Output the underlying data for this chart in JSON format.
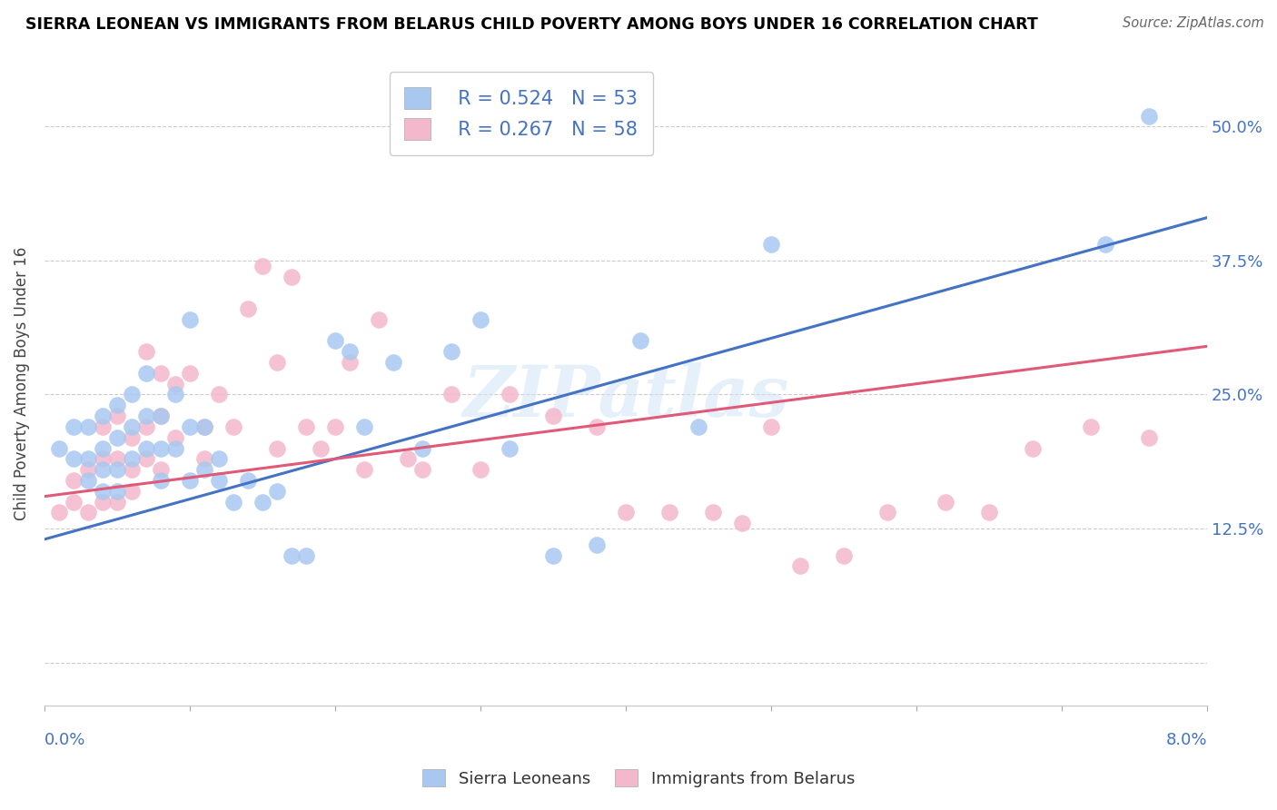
{
  "title": "SIERRA LEONEAN VS IMMIGRANTS FROM BELARUS CHILD POVERTY AMONG BOYS UNDER 16 CORRELATION CHART",
  "source": "Source: ZipAtlas.com",
  "ylabel": "Child Poverty Among Boys Under 16",
  "ytick_labels": [
    "",
    "12.5%",
    "25.0%",
    "37.5%",
    "50.0%"
  ],
  "ytick_values": [
    0.0,
    0.125,
    0.25,
    0.375,
    0.5
  ],
  "xlim": [
    0,
    0.08
  ],
  "ylim": [
    -0.04,
    0.56
  ],
  "blue_R": 0.524,
  "blue_N": 53,
  "pink_R": 0.267,
  "pink_N": 58,
  "blue_color": "#a8c8f0",
  "pink_color": "#f4b8cc",
  "blue_line_color": "#4472c4",
  "pink_line_color": "#e05a78",
  "blue_line_label": "R = 0.524",
  "pink_line_label": "R = 0.267",
  "legend_label_blue": "Sierra Leoneans",
  "legend_label_pink": "Immigrants from Belarus",
  "watermark": "ZIPatlas",
  "blue_scatter_x": [
    0.001,
    0.002,
    0.002,
    0.003,
    0.003,
    0.003,
    0.004,
    0.004,
    0.004,
    0.004,
    0.005,
    0.005,
    0.005,
    0.005,
    0.006,
    0.006,
    0.006,
    0.007,
    0.007,
    0.007,
    0.008,
    0.008,
    0.008,
    0.009,
    0.009,
    0.01,
    0.01,
    0.01,
    0.011,
    0.011,
    0.012,
    0.012,
    0.013,
    0.014,
    0.015,
    0.016,
    0.017,
    0.018,
    0.02,
    0.021,
    0.022,
    0.024,
    0.026,
    0.028,
    0.03,
    0.032,
    0.035,
    0.038,
    0.041,
    0.045,
    0.05,
    0.073,
    0.076
  ],
  "blue_scatter_y": [
    0.2,
    0.22,
    0.19,
    0.22,
    0.19,
    0.17,
    0.23,
    0.2,
    0.18,
    0.16,
    0.24,
    0.21,
    0.18,
    0.16,
    0.25,
    0.22,
    0.19,
    0.27,
    0.23,
    0.2,
    0.23,
    0.2,
    0.17,
    0.25,
    0.2,
    0.32,
    0.22,
    0.17,
    0.22,
    0.18,
    0.19,
    0.17,
    0.15,
    0.17,
    0.15,
    0.16,
    0.1,
    0.1,
    0.3,
    0.29,
    0.22,
    0.28,
    0.2,
    0.29,
    0.32,
    0.2,
    0.1,
    0.11,
    0.3,
    0.22,
    0.39,
    0.39,
    0.51
  ],
  "pink_scatter_x": [
    0.001,
    0.002,
    0.002,
    0.003,
    0.003,
    0.004,
    0.004,
    0.004,
    0.005,
    0.005,
    0.005,
    0.006,
    0.006,
    0.006,
    0.007,
    0.007,
    0.007,
    0.008,
    0.008,
    0.008,
    0.009,
    0.009,
    0.01,
    0.011,
    0.011,
    0.012,
    0.013,
    0.014,
    0.015,
    0.016,
    0.016,
    0.017,
    0.018,
    0.019,
    0.02,
    0.021,
    0.022,
    0.023,
    0.025,
    0.026,
    0.028,
    0.03,
    0.032,
    0.035,
    0.038,
    0.04,
    0.043,
    0.046,
    0.048,
    0.05,
    0.052,
    0.055,
    0.058,
    0.062,
    0.065,
    0.068,
    0.072,
    0.076
  ],
  "pink_scatter_y": [
    0.14,
    0.17,
    0.15,
    0.18,
    0.14,
    0.22,
    0.19,
    0.15,
    0.23,
    0.19,
    0.15,
    0.21,
    0.18,
    0.16,
    0.29,
    0.22,
    0.19,
    0.27,
    0.23,
    0.18,
    0.26,
    0.21,
    0.27,
    0.22,
    0.19,
    0.25,
    0.22,
    0.33,
    0.37,
    0.28,
    0.2,
    0.36,
    0.22,
    0.2,
    0.22,
    0.28,
    0.18,
    0.32,
    0.19,
    0.18,
    0.25,
    0.18,
    0.25,
    0.23,
    0.22,
    0.14,
    0.14,
    0.14,
    0.13,
    0.22,
    0.09,
    0.1,
    0.14,
    0.15,
    0.14,
    0.2,
    0.22,
    0.21
  ],
  "blue_line_x0": 0.0,
  "blue_line_y0": 0.115,
  "blue_line_x1": 0.08,
  "blue_line_y1": 0.415,
  "pink_line_x0": 0.0,
  "pink_line_y0": 0.155,
  "pink_line_x1": 0.08,
  "pink_line_y1": 0.295
}
